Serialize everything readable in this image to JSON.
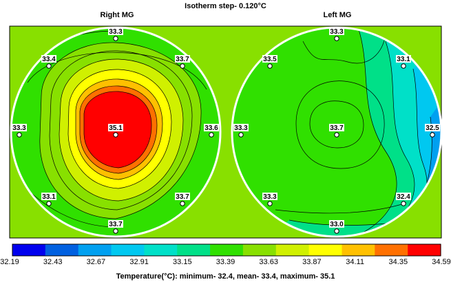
{
  "title": "Isotherm step- 0.120°C",
  "colors": {
    "background": "#88e000",
    "panel_border": "#000000",
    "circle_stroke": "#ffffff"
  },
  "chart_data": [
    {
      "type": "heatmap",
      "title": "Right MG",
      "points": [
        {
          "label": "33.3",
          "value": 33.3
        },
        {
          "label": "33.4",
          "value": 33.4
        },
        {
          "label": "33.7",
          "value": 33.7
        },
        {
          "label": "33.3",
          "value": 33.3
        },
        {
          "label": "35.1",
          "value": 35.1
        },
        {
          "label": "33.6",
          "value": 33.6
        },
        {
          "label": "33.1",
          "value": 33.1
        },
        {
          "label": "33.7",
          "value": 33.7
        },
        {
          "label": "33.7",
          "value": 33.7
        }
      ]
    },
    {
      "type": "heatmap",
      "title": "Left MG",
      "points": [
        {
          "label": "33.3",
          "value": 33.3
        },
        {
          "label": "33.5",
          "value": 33.5
        },
        {
          "label": "33.1",
          "value": 33.1
        },
        {
          "label": "33.3",
          "value": 33.3
        },
        {
          "label": "33.7",
          "value": 33.7
        },
        {
          "label": "32.5",
          "value": 32.5
        },
        {
          "label": "33.3",
          "value": 33.3
        },
        {
          "label": "32.4",
          "value": 32.4
        },
        {
          "label": "33.0",
          "value": 33.0
        }
      ]
    }
  ],
  "colorbar": {
    "ticks": [
      "32.19",
      "32.43",
      "32.67",
      "32.91",
      "33.15",
      "33.39",
      "33.63",
      "33.87",
      "34.11",
      "34.35",
      "34.59"
    ],
    "colors": [
      "#0000ee",
      "#0060e0",
      "#00a0f0",
      "#00c8f0",
      "#00e0c8",
      "#00e088",
      "#30e000",
      "#88e000",
      "#d0f000",
      "#ffff00",
      "#ffc000",
      "#ff7000",
      "#ff0000"
    ]
  },
  "footer": "Temperature(°C): minimum-   32.4,  mean-   33.4,  maximum-   35.1"
}
